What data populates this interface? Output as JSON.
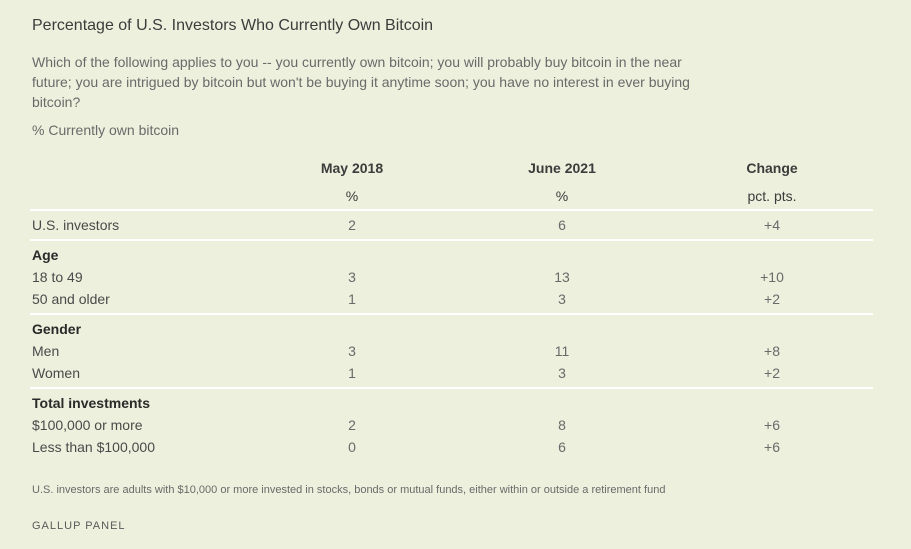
{
  "chart_data": {
    "type": "table",
    "title": "Percentage of U.S. Investors Who Currently Own Bitcoin",
    "question": "Which of the following applies to you -- you currently own bitcoin; you will probably buy bitcoin in the near future; you are intrigued by bitcoin but won't be buying it anytime soon; you have no interest in ever buying bitcoin?",
    "subtitle": "% Currently own bitcoin",
    "columns": [
      {
        "name": "May 2018",
        "unit": "%"
      },
      {
        "name": "June 2021",
        "unit": "%"
      },
      {
        "name": "Change",
        "unit": "pct. pts."
      }
    ],
    "rows": [
      {
        "label": "U.S. investors",
        "values": [
          "2",
          "6",
          "+4"
        ]
      },
      {
        "group": "Age"
      },
      {
        "label": "18 to 49",
        "values": [
          "3",
          "13",
          "+10"
        ]
      },
      {
        "label": "50 and older",
        "values": [
          "1",
          "3",
          "+2"
        ]
      },
      {
        "group": "Gender"
      },
      {
        "label": "Men",
        "values": [
          "3",
          "11",
          "+8"
        ]
      },
      {
        "label": "Women",
        "values": [
          "1",
          "3",
          "+2"
        ]
      },
      {
        "group": "Total investments"
      },
      {
        "label": "$100,000 or more",
        "values": [
          "2",
          "8",
          "+6"
        ]
      },
      {
        "label": "Less than $100,000",
        "values": [
          "0",
          "6",
          "+6"
        ]
      }
    ],
    "footnote": "U.S. investors are adults with $10,000 or more invested in stocks, bonds or mutual funds, either within or outside a retirement fund",
    "source": "GALLUP PANEL"
  }
}
